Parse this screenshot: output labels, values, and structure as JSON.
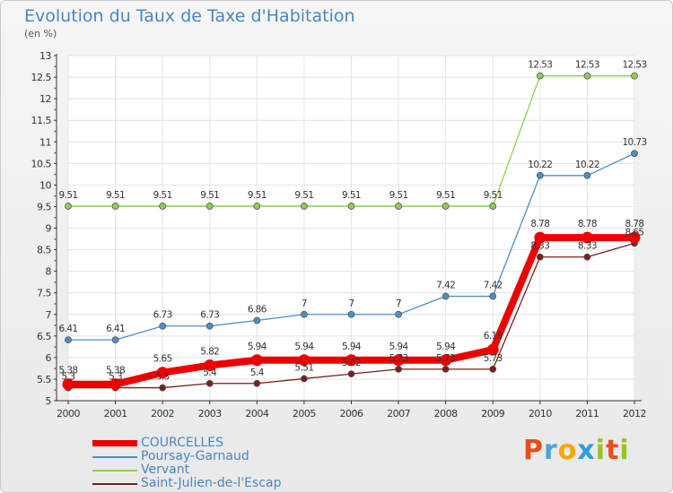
{
  "header": {
    "title": "Evolution du Taux de Taxe d'Habitation",
    "unit": "(en %)"
  },
  "logo": {
    "text": "Proxiti",
    "colors": [
      "#e84e1b",
      "#4aa3df",
      "#f5a800",
      "#2e9ed6",
      "#9bc31d",
      "#e84e1b",
      "#9bc31d"
    ]
  },
  "chart_data": {
    "type": "line",
    "x": [
      "2000",
      "2001",
      "2002",
      "2003",
      "2004",
      "2005",
      "2006",
      "2007",
      "2008",
      "2009",
      "2010",
      "2011",
      "2012"
    ],
    "ylim": [
      5,
      13
    ],
    "yticks": [
      5,
      5.5,
      6,
      6.5,
      7,
      7.5,
      8,
      8.5,
      9,
      9.5,
      10,
      10.5,
      11,
      11.5,
      12,
      12.5,
      13
    ],
    "ytick_labels": [
      "5",
      "5.5",
      "6",
      "6.5",
      "7",
      "7.5",
      "8",
      "8.5",
      "9",
      "9.5",
      "10",
      "10.5",
      "11",
      "11.5",
      "12",
      "12.5",
      "13"
    ],
    "grid": true,
    "legend_position": "bottom-left",
    "series": [
      {
        "name": "COURCELLES",
        "color": "#ee0000",
        "values": [
          5.38,
          5.38,
          5.65,
          5.82,
          5.94,
          5.94,
          5.94,
          5.94,
          5.94,
          6.18,
          8.78,
          8.78,
          8.78
        ],
        "labels": [
          "5.38",
          "5.38",
          "5.65",
          "5.82",
          "5.94",
          "5.94",
          "5.94",
          "5.94",
          "5.94",
          "6.18",
          "8.78",
          "8.78",
          "8.78"
        ]
      },
      {
        "name": "Poursay-Garnaud",
        "color": "#4f8fc9",
        "values": [
          6.41,
          6.41,
          6.73,
          6.73,
          6.86,
          7,
          7,
          7,
          7.42,
          7.42,
          10.22,
          10.22,
          10.73
        ],
        "labels": [
          "6.41",
          "6.41",
          "6.73",
          "6.73",
          "6.86",
          "7",
          "7",
          "7",
          "7.42",
          "7.42",
          "10.22",
          "10.22",
          "10.73"
        ]
      },
      {
        "name": "Vervant",
        "color": "#8ecf4f",
        "values": [
          9.51,
          9.51,
          9.51,
          9.51,
          9.51,
          9.51,
          9.51,
          9.51,
          9.51,
          9.51,
          12.53,
          12.53,
          12.53
        ],
        "labels": [
          "9.51",
          "9.51",
          "9.51",
          "9.51",
          "9.51",
          "9.51",
          "9.51",
          "9.51",
          "9.51",
          "9.51",
          "12.53",
          "12.53",
          "12.53"
        ]
      },
      {
        "name": "Saint-Julien-de-l'Escap",
        "color": "#7a1f1f",
        "values": [
          5.3,
          5.3,
          5.3,
          5.4,
          5.4,
          5.51,
          5.62,
          5.73,
          5.73,
          5.73,
          8.33,
          8.33,
          8.65
        ],
        "labels": [
          "5.3",
          "5.3",
          "5.3",
          "5.4",
          "5.4",
          "5.51",
          "5.62",
          "5.73",
          "5.73",
          "5.73",
          "8.33",
          "8.33",
          "8.65"
        ]
      }
    ]
  }
}
